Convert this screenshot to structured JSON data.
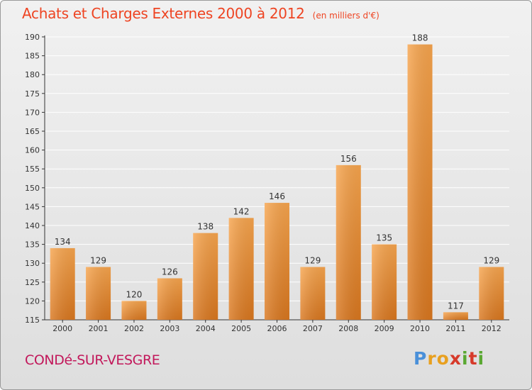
{
  "title": "Achats et Charges Externes 2000 à 2012",
  "unit_note": "(en milliers d'€)",
  "commune": "CONDé-SUR-VESGRE",
  "brand": {
    "text": "Proxiti",
    "letters": [
      {
        "ch": "P",
        "color": "#4a90d9"
      },
      {
        "ch": "r",
        "color": "#e8a020"
      },
      {
        "ch": "o",
        "color": "#e8a020"
      },
      {
        "ch": "x",
        "color": "#d63a2a"
      },
      {
        "ch": "i",
        "color": "#5aa832"
      },
      {
        "ch": "t",
        "color": "#d63a2a"
      },
      {
        "ch": "i",
        "color": "#5aa832"
      }
    ]
  },
  "colors": {
    "title": "#ee4422",
    "bar_light": "#f7a54e",
    "bar_dark": "#d9771f",
    "grid": "#ffffff",
    "axis": "#333333",
    "commune": "#c2185b"
  },
  "chart_data": {
    "type": "bar",
    "categories": [
      "2000",
      "2001",
      "2002",
      "2003",
      "2004",
      "2005",
      "2006",
      "2007",
      "2008",
      "2009",
      "2010",
      "2011",
      "2012"
    ],
    "values": [
      134,
      129,
      120,
      126,
      138,
      142,
      146,
      129,
      156,
      135,
      188,
      117,
      129
    ],
    "ylim": [
      115,
      190
    ],
    "yticks": [
      115,
      120,
      125,
      130,
      135,
      140,
      145,
      150,
      155,
      160,
      165,
      170,
      175,
      180,
      185,
      190
    ],
    "grid": true,
    "xlabel": "",
    "ylabel": ""
  }
}
